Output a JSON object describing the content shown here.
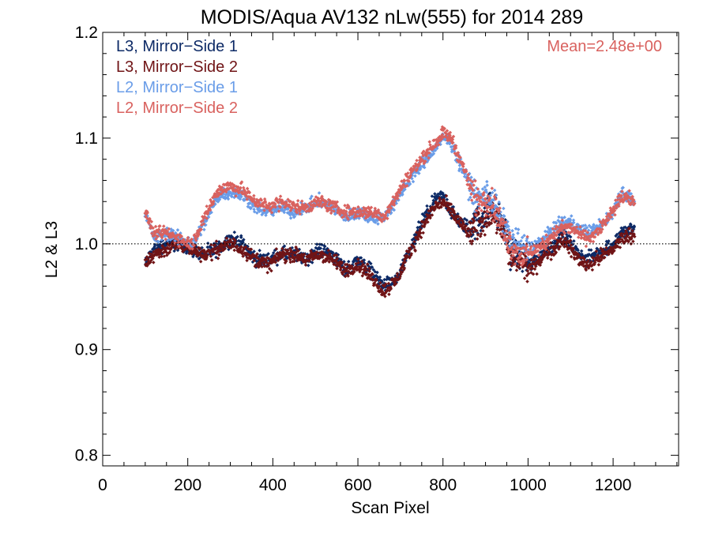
{
  "chart_data": {
    "type": "scatter",
    "title": "MODIS/Aqua AV132 nLw(555) for 2014 289",
    "xlabel": "Scan Pixel",
    "ylabel": "L2 & L3",
    "xlim": [
      0,
      1354
    ],
    "ylim": [
      0.79,
      1.2
    ],
    "xticks": [
      0,
      200,
      400,
      600,
      800,
      1000,
      1200
    ],
    "xtick_labels": [
      "0",
      "200",
      "400",
      "600",
      "800",
      "1000",
      "1200"
    ],
    "yticks": [
      0.8,
      0.9,
      1.0,
      1.1,
      1.2
    ],
    "ytick_labels": [
      "0.8",
      "0.9",
      "1.0",
      "1.1",
      "1.2"
    ],
    "reference_line": {
      "y": 1.0,
      "style": "dotted"
    },
    "annotation": {
      "text": "Mean=2.48e+00",
      "color": "#d9625f"
    },
    "legend_position": "top-left",
    "grid": false,
    "series": [
      {
        "name": "L3, Mirror−Side 1",
        "color": "#0d2a66",
        "jitter": 0.01,
        "x": [
          100,
          120,
          150,
          180,
          210,
          240,
          270,
          300,
          330,
          360,
          390,
          420,
          450,
          480,
          510,
          540,
          570,
          600,
          630,
          660,
          690,
          720,
          750,
          780,
          800,
          820,
          840,
          860,
          880,
          900,
          920,
          940,
          960,
          980,
          1000,
          1020,
          1040,
          1060,
          1080,
          1100,
          1120,
          1140,
          1160,
          1180,
          1200,
          1220,
          1250
        ],
        "y": [
          0.98,
          0.995,
          1.0,
          1.0,
          0.995,
          0.99,
          0.995,
          1.005,
          1.0,
          0.985,
          0.985,
          0.99,
          0.99,
          0.985,
          0.995,
          0.99,
          0.975,
          0.985,
          0.975,
          0.96,
          0.965,
          0.99,
          1.02,
          1.04,
          1.045,
          1.03,
          1.02,
          1.015,
          1.02,
          1.03,
          1.035,
          1.02,
          0.99,
          0.99,
          0.98,
          0.985,
          0.995,
          1.0,
          1.01,
          1.0,
          0.99,
          0.985,
          0.99,
          0.995,
          1.0,
          1.01,
          1.015
        ]
      },
      {
        "name": "L3, Mirror−Side 2",
        "color": "#701416",
        "jitter": 0.01,
        "x": [
          100,
          120,
          150,
          180,
          210,
          240,
          270,
          300,
          330,
          360,
          390,
          420,
          450,
          480,
          510,
          540,
          570,
          600,
          630,
          660,
          690,
          720,
          750,
          780,
          800,
          820,
          840,
          860,
          880,
          900,
          920,
          940,
          960,
          980,
          1000,
          1020,
          1040,
          1060,
          1080,
          1100,
          1120,
          1140,
          1160,
          1180,
          1200,
          1220,
          1250
        ],
        "y": [
          0.98,
          0.99,
          0.995,
          1.0,
          0.995,
          0.99,
          0.995,
          1.0,
          0.995,
          0.985,
          0.98,
          0.99,
          0.99,
          0.985,
          0.99,
          0.985,
          0.975,
          0.98,
          0.97,
          0.955,
          0.965,
          0.99,
          1.015,
          1.035,
          1.04,
          1.03,
          1.02,
          1.01,
          1.015,
          1.025,
          1.03,
          1.015,
          0.985,
          0.985,
          0.975,
          0.98,
          0.99,
          0.995,
          1.005,
          0.995,
          0.985,
          0.98,
          0.985,
          0.99,
          0.995,
          1.005,
          1.01
        ]
      },
      {
        "name": "L2, Mirror−Side 1",
        "color": "#6a9de8",
        "jitter": 0.009,
        "x": [
          100,
          120,
          150,
          180,
          210,
          240,
          270,
          300,
          330,
          360,
          390,
          420,
          450,
          480,
          510,
          540,
          570,
          600,
          630,
          660,
          690,
          720,
          750,
          780,
          800,
          820,
          840,
          860,
          880,
          900,
          920,
          940,
          960,
          980,
          1000,
          1020,
          1040,
          1060,
          1080,
          1100,
          1120,
          1140,
          1160,
          1180,
          1200,
          1220,
          1250
        ],
        "y": [
          1.03,
          1.005,
          1.01,
          1.005,
          1.0,
          1.02,
          1.045,
          1.05,
          1.045,
          1.035,
          1.03,
          1.035,
          1.03,
          1.035,
          1.04,
          1.035,
          1.025,
          1.03,
          1.025,
          1.025,
          1.04,
          1.06,
          1.075,
          1.09,
          1.1,
          1.095,
          1.075,
          1.06,
          1.04,
          1.05,
          1.04,
          1.02,
          1.005,
          1.0,
          0.995,
          1.0,
          1.005,
          1.015,
          1.02,
          1.02,
          1.015,
          1.01,
          1.015,
          1.02,
          1.03,
          1.05,
          1.04
        ]
      },
      {
        "name": "L2, Mirror−Side 2",
        "color": "#d9625f",
        "jitter": 0.009,
        "x": [
          100,
          120,
          150,
          180,
          210,
          240,
          270,
          300,
          330,
          360,
          390,
          420,
          450,
          480,
          510,
          540,
          570,
          600,
          630,
          660,
          690,
          720,
          750,
          780,
          800,
          820,
          840,
          860,
          880,
          900,
          920,
          940,
          960,
          980,
          1000,
          1020,
          1040,
          1060,
          1080,
          1100,
          1120,
          1140,
          1160,
          1180,
          1200,
          1220,
          1250
        ],
        "y": [
          1.03,
          1.01,
          1.01,
          1.005,
          1.0,
          1.025,
          1.05,
          1.055,
          1.05,
          1.04,
          1.035,
          1.04,
          1.035,
          1.035,
          1.04,
          1.035,
          1.03,
          1.03,
          1.03,
          1.025,
          1.045,
          1.065,
          1.08,
          1.095,
          1.105,
          1.1,
          1.08,
          1.06,
          1.04,
          1.045,
          1.035,
          1.015,
          1.0,
          0.99,
          0.99,
          0.995,
          1.0,
          1.01,
          1.015,
          1.015,
          1.01,
          1.005,
          1.01,
          1.02,
          1.03,
          1.045,
          1.04
        ]
      }
    ]
  }
}
